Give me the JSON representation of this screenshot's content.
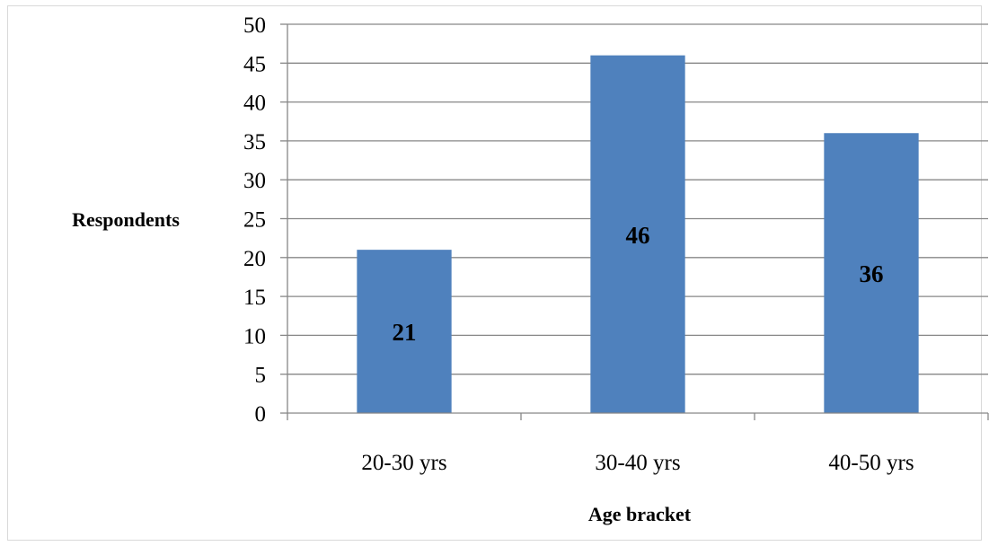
{
  "chart_data": {
    "type": "bar",
    "categories": [
      "20-30 yrs",
      "30-40 yrs",
      "40-50 yrs"
    ],
    "values": [
      21,
      46,
      36
    ],
    "data_labels": [
      "21",
      "46",
      "36"
    ],
    "xlabel": "Age bracket",
    "ylabel": "Respondents",
    "ylim": [
      0,
      50
    ],
    "yticks": [
      0,
      5,
      10,
      15,
      20,
      25,
      30,
      35,
      40,
      45,
      50
    ],
    "grid": true,
    "legend": false,
    "bar_color": "#4f81bd",
    "grid_color": "#878787"
  }
}
